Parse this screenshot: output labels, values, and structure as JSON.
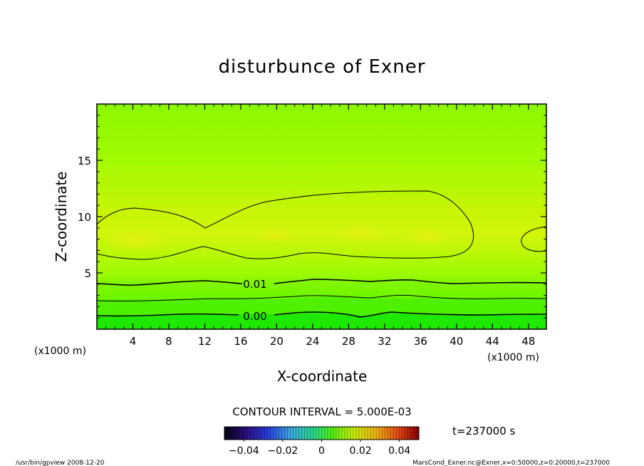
{
  "chart_data": {
    "type": "heatmap",
    "title": "disturbunce of Exner",
    "xlabel": "X-coordinate",
    "ylabel": "Z-coordinate",
    "x_unit_left": "(x1000 m)",
    "x_unit_right": "(x1000 m)",
    "xlim": [
      0,
      50
    ],
    "ylim": [
      0,
      20
    ],
    "x_ticks": [
      4,
      8,
      12,
      16,
      20,
      24,
      28,
      32,
      36,
      40,
      44,
      48
    ],
    "y_ticks": [
      5,
      10,
      15
    ],
    "contour_labels": [
      {
        "text": "0.01",
        "x": 17.4,
        "z": 4.0
      },
      {
        "text": "0.00",
        "x": 17.4,
        "z": 1.2
      }
    ],
    "contour_interval_text": "CONTOUR INTERVAL = 5.000E-03",
    "colorbar": {
      "ticks": [
        "−0.04",
        "−0.02",
        "0",
        "0.02",
        "0.04"
      ],
      "tick_values": [
        -0.04,
        -0.02,
        0,
        0.02,
        0.04
      ],
      "range": [
        -0.05,
        0.05
      ]
    },
    "time_label": "t=237000 s",
    "footer_left": "/usr/bin/gpview   2008-12-20",
    "footer_right": "MarsCond_Exner.nc@Exner,x=0:50000,z=0:20000,t=237000",
    "field_colors": [
      "#0fe800",
      "#3cf000",
      "#66f500",
      "#8bfa00",
      "#9ffa05",
      "#b9fa05",
      "#ccf505",
      "#d8f20a"
    ]
  }
}
